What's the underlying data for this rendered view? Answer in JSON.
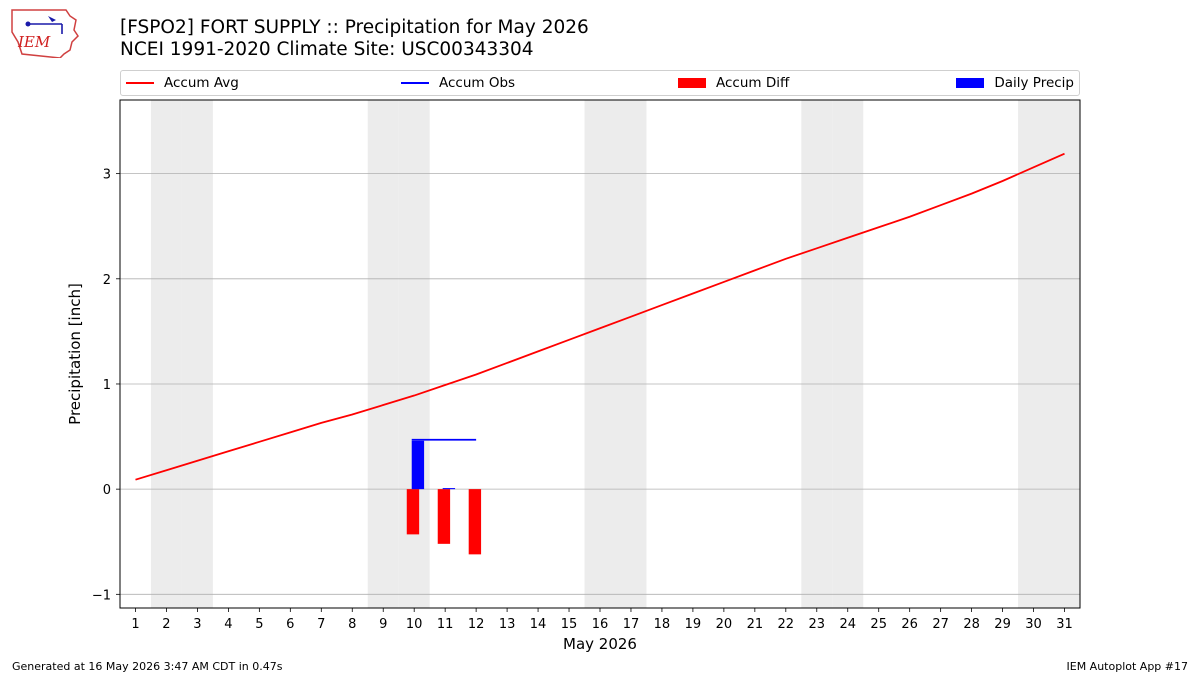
{
  "logo": {
    "text": "IEM"
  },
  "title": {
    "line1": "[FSPO2] FORT SUPPLY :: Precipitation for May 2026",
    "line2": "NCEI 1991-2020 Climate Site: USC00343304"
  },
  "legend": [
    {
      "label": "Accum Avg",
      "kind": "line",
      "color": "#ff0000"
    },
    {
      "label": "Accum Obs",
      "kind": "line",
      "color": "#0000ff"
    },
    {
      "label": "Accum Diff",
      "kind": "box",
      "color": "#ff0000"
    },
    {
      "label": "Daily Precip",
      "kind": "box",
      "color": "#0000ff"
    }
  ],
  "footer": {
    "left": "Generated at 16 May 2026 3:47 AM CDT in 0.47s",
    "right": "IEM Autoplot App #17"
  },
  "chart_data": {
    "type": "line",
    "xlabel": "May 2026",
    "ylabel": "Precipitation [inch]",
    "xlim": [
      0.5,
      31.5
    ],
    "ylim": [
      -1.13,
      3.7
    ],
    "x_ticks": [
      1,
      2,
      3,
      4,
      5,
      6,
      7,
      8,
      9,
      10,
      11,
      12,
      13,
      14,
      15,
      16,
      17,
      18,
      19,
      20,
      21,
      22,
      23,
      24,
      25,
      26,
      27,
      28,
      29,
      30,
      31
    ],
    "y_ticks": [
      -1,
      0,
      1,
      2,
      3
    ],
    "y_tick_labels": [
      "−1",
      "0",
      "1",
      "2",
      "3"
    ],
    "grid": "y",
    "legend_position": "top",
    "weekend_days": [
      2,
      3,
      9,
      10,
      16,
      17,
      23,
      24,
      30,
      31
    ],
    "series": [
      {
        "name": "Accum Avg",
        "type": "line",
        "color": "#ff0000",
        "x": [
          1,
          2,
          3,
          4,
          5,
          6,
          7,
          8,
          9,
          10,
          11,
          12,
          13,
          14,
          15,
          16,
          17,
          18,
          19,
          20,
          21,
          22,
          23,
          24,
          25,
          26,
          27,
          28,
          29,
          30,
          31
        ],
        "values": [
          0.09,
          0.18,
          0.27,
          0.36,
          0.45,
          0.54,
          0.63,
          0.71,
          0.8,
          0.89,
          0.99,
          1.09,
          1.2,
          1.31,
          1.42,
          1.53,
          1.64,
          1.75,
          1.86,
          1.97,
          2.08,
          2.19,
          2.29,
          2.39,
          2.49,
          2.59,
          2.7,
          2.81,
          2.93,
          3.06,
          3.19
        ]
      },
      {
        "name": "Accum Obs",
        "type": "line",
        "color": "#0000ff",
        "x": [
          10,
          11,
          12
        ],
        "values": [
          0.47,
          0.47,
          0.47
        ]
      },
      {
        "name": "Accum Diff",
        "type": "bar",
        "color": "#ff0000",
        "x": [
          10,
          11,
          12
        ],
        "values": [
          -0.43,
          -0.52,
          -0.62
        ]
      },
      {
        "name": "Daily Precip",
        "type": "bar",
        "color": "#0000ff",
        "x": [
          10,
          11
        ],
        "values": [
          0.46,
          0.01
        ]
      }
    ]
  }
}
